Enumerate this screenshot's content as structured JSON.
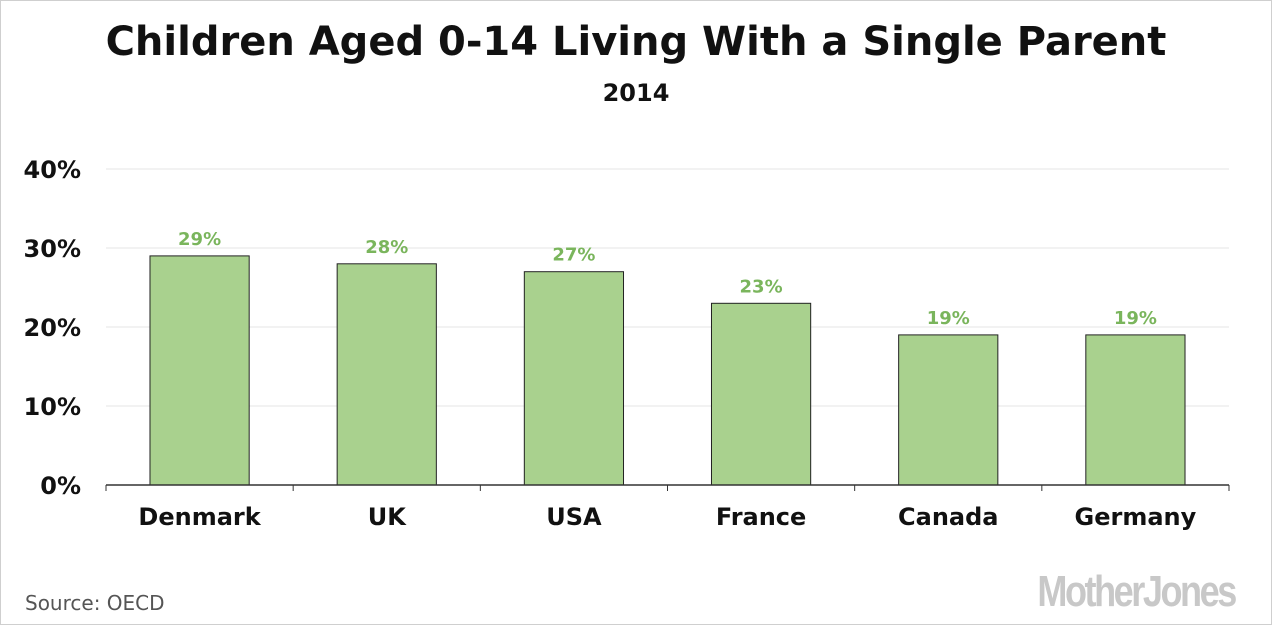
{
  "chart_data": {
    "type": "bar",
    "title": "Children Aged 0-14 Living With a Single Parent",
    "subtitle": "2014",
    "categories": [
      "Denmark",
      "UK",
      "USA",
      "France",
      "Canada",
      "Germany"
    ],
    "values": [
      29,
      28,
      27,
      23,
      19,
      19
    ],
    "data_labels": [
      "29%",
      "28%",
      "27%",
      "23%",
      "19%",
      "19%"
    ],
    "ylim": [
      0,
      40
    ],
    "yticks": [
      0,
      10,
      20,
      30,
      40
    ],
    "ytick_labels": [
      "0%",
      "10%",
      "20%",
      "30%",
      "40%"
    ],
    "grid": true,
    "colors": {
      "bar": "#a9d18e",
      "label": "#7ab55c",
      "grid": "#e6e6e6",
      "axis": "#333333"
    }
  },
  "source": "Source:  OECD",
  "logo": "MotherJones"
}
